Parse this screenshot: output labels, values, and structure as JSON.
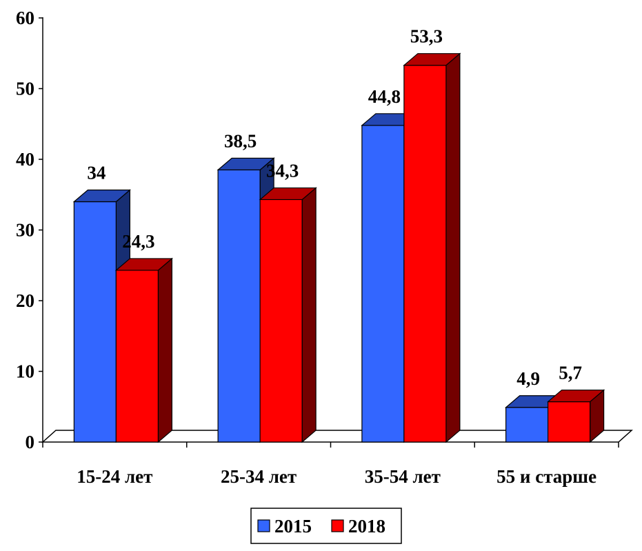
{
  "chart_data": {
    "type": "bar",
    "categories": [
      "15-24 лет",
      "25-34 лет",
      "35-54 лет",
      "55 и старше"
    ],
    "series": [
      {
        "name": "2015",
        "values": [
          34,
          38.5,
          44.8,
          4.9
        ],
        "labels": [
          "34",
          "38,5",
          "44,8",
          "4,9"
        ],
        "color": "#3366ff"
      },
      {
        "name": "2018",
        "values": [
          24.3,
          34.3,
          53.3,
          5.7
        ],
        "labels": [
          "24,3",
          "34,3",
          "53,3",
          "5,7"
        ],
        "color": "#ff0000"
      }
    ],
    "yticks": [
      "0",
      "10",
      "20",
      "30",
      "40",
      "50",
      "60"
    ],
    "ylim": [
      0,
      60
    ],
    "legend_position": "bottom",
    "style": "3d-clustered-bar"
  }
}
